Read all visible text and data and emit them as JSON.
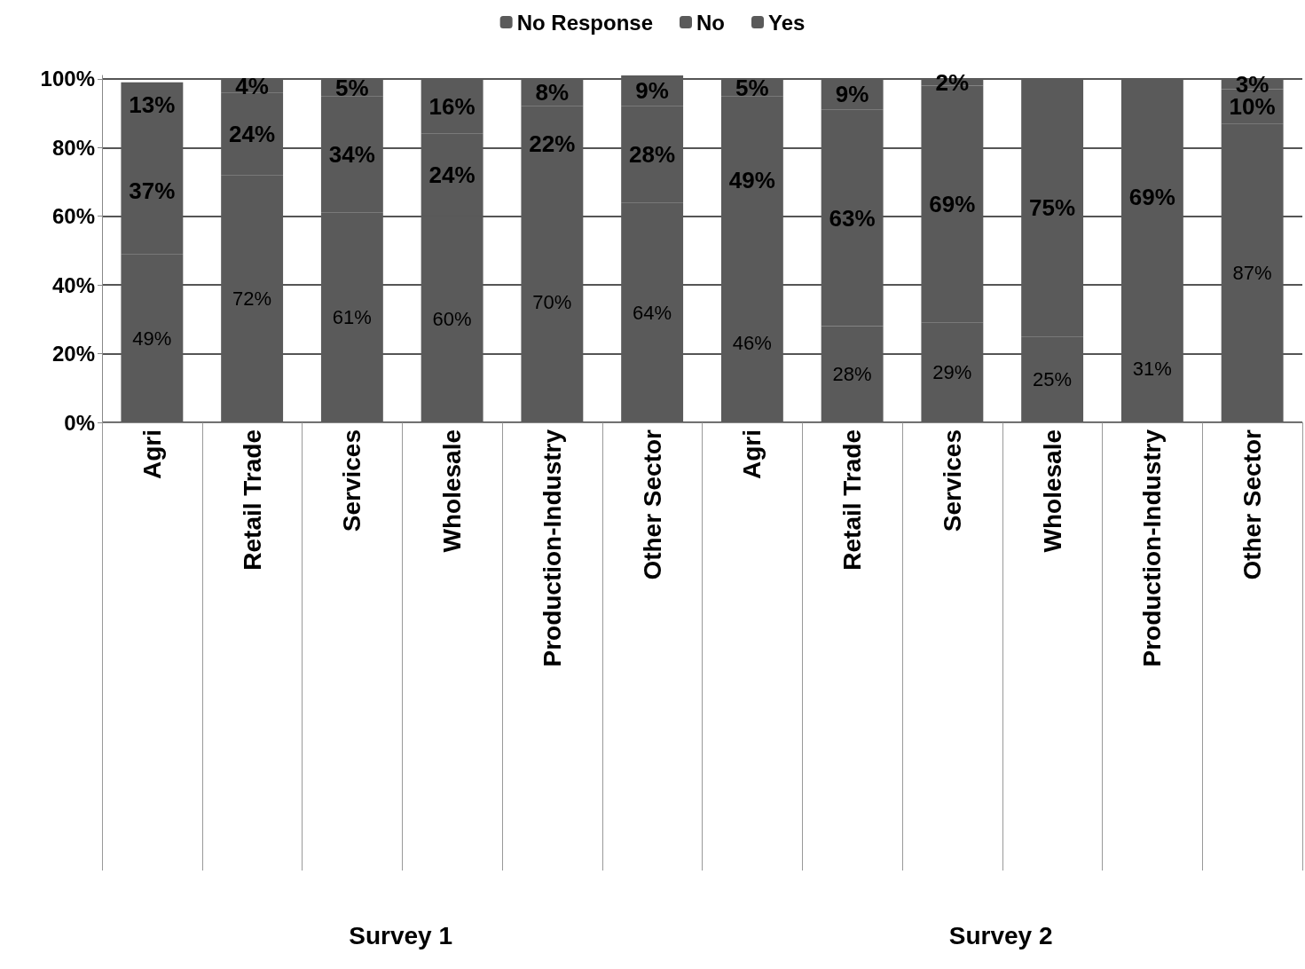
{
  "chart_data": {
    "type": "bar",
    "stacked": true,
    "categories": [
      "Agri",
      "Retail Trade",
      "Services",
      "Wholesale",
      "Production-Industry",
      "Other Sector",
      "Agri",
      "Retail Trade",
      "Services",
      "Wholesale",
      "Production-Industry",
      "Other Sector"
    ],
    "series": [
      {
        "name": "Yes",
        "color": "#5a5a5a",
        "values": [
          49,
          72,
          61,
          60,
          70,
          64,
          46,
          28,
          29,
          25,
          31,
          87
        ],
        "value_labels": [
          "49%",
          "72%",
          "61%",
          "60%",
          "70%",
          "64%",
          "46%",
          "28%",
          "29%",
          "25%",
          "31%",
          "87%"
        ]
      },
      {
        "name": "No",
        "color": "#5a5a5a",
        "values": [
          37,
          24,
          34,
          24,
          22,
          28,
          49,
          63,
          69,
          75,
          69,
          10
        ],
        "value_labels": [
          "37%",
          "24%",
          "34%",
          "24%",
          "22%",
          "28%",
          "49%",
          "63%",
          "69%",
          "75%",
          "69%",
          "10%"
        ]
      },
      {
        "name": "No Response",
        "color": "#5a5a5a",
        "values": [
          13,
          4,
          5,
          16,
          8,
          9,
          5,
          9,
          2,
          null,
          null,
          3
        ],
        "value_labels": [
          "13%",
          "4%",
          "5%",
          "16%",
          "8%",
          "9%",
          "5%",
          "9%",
          "2%",
          null,
          null,
          "3%"
        ]
      }
    ],
    "ylim": [
      0,
      101
    ],
    "yticks": [
      {
        "value": 0,
        "label": "0%"
      },
      {
        "value": 20,
        "label": "20%"
      },
      {
        "value": 40,
        "label": "40%"
      },
      {
        "value": 60,
        "label": "60%"
      },
      {
        "value": 80,
        "label": "80%"
      },
      {
        "value": 100,
        "label": "100%"
      }
    ],
    "grid": "y",
    "legend": "top",
    "annotations": [
      "Survey 1",
      "Survey 2"
    ]
  }
}
